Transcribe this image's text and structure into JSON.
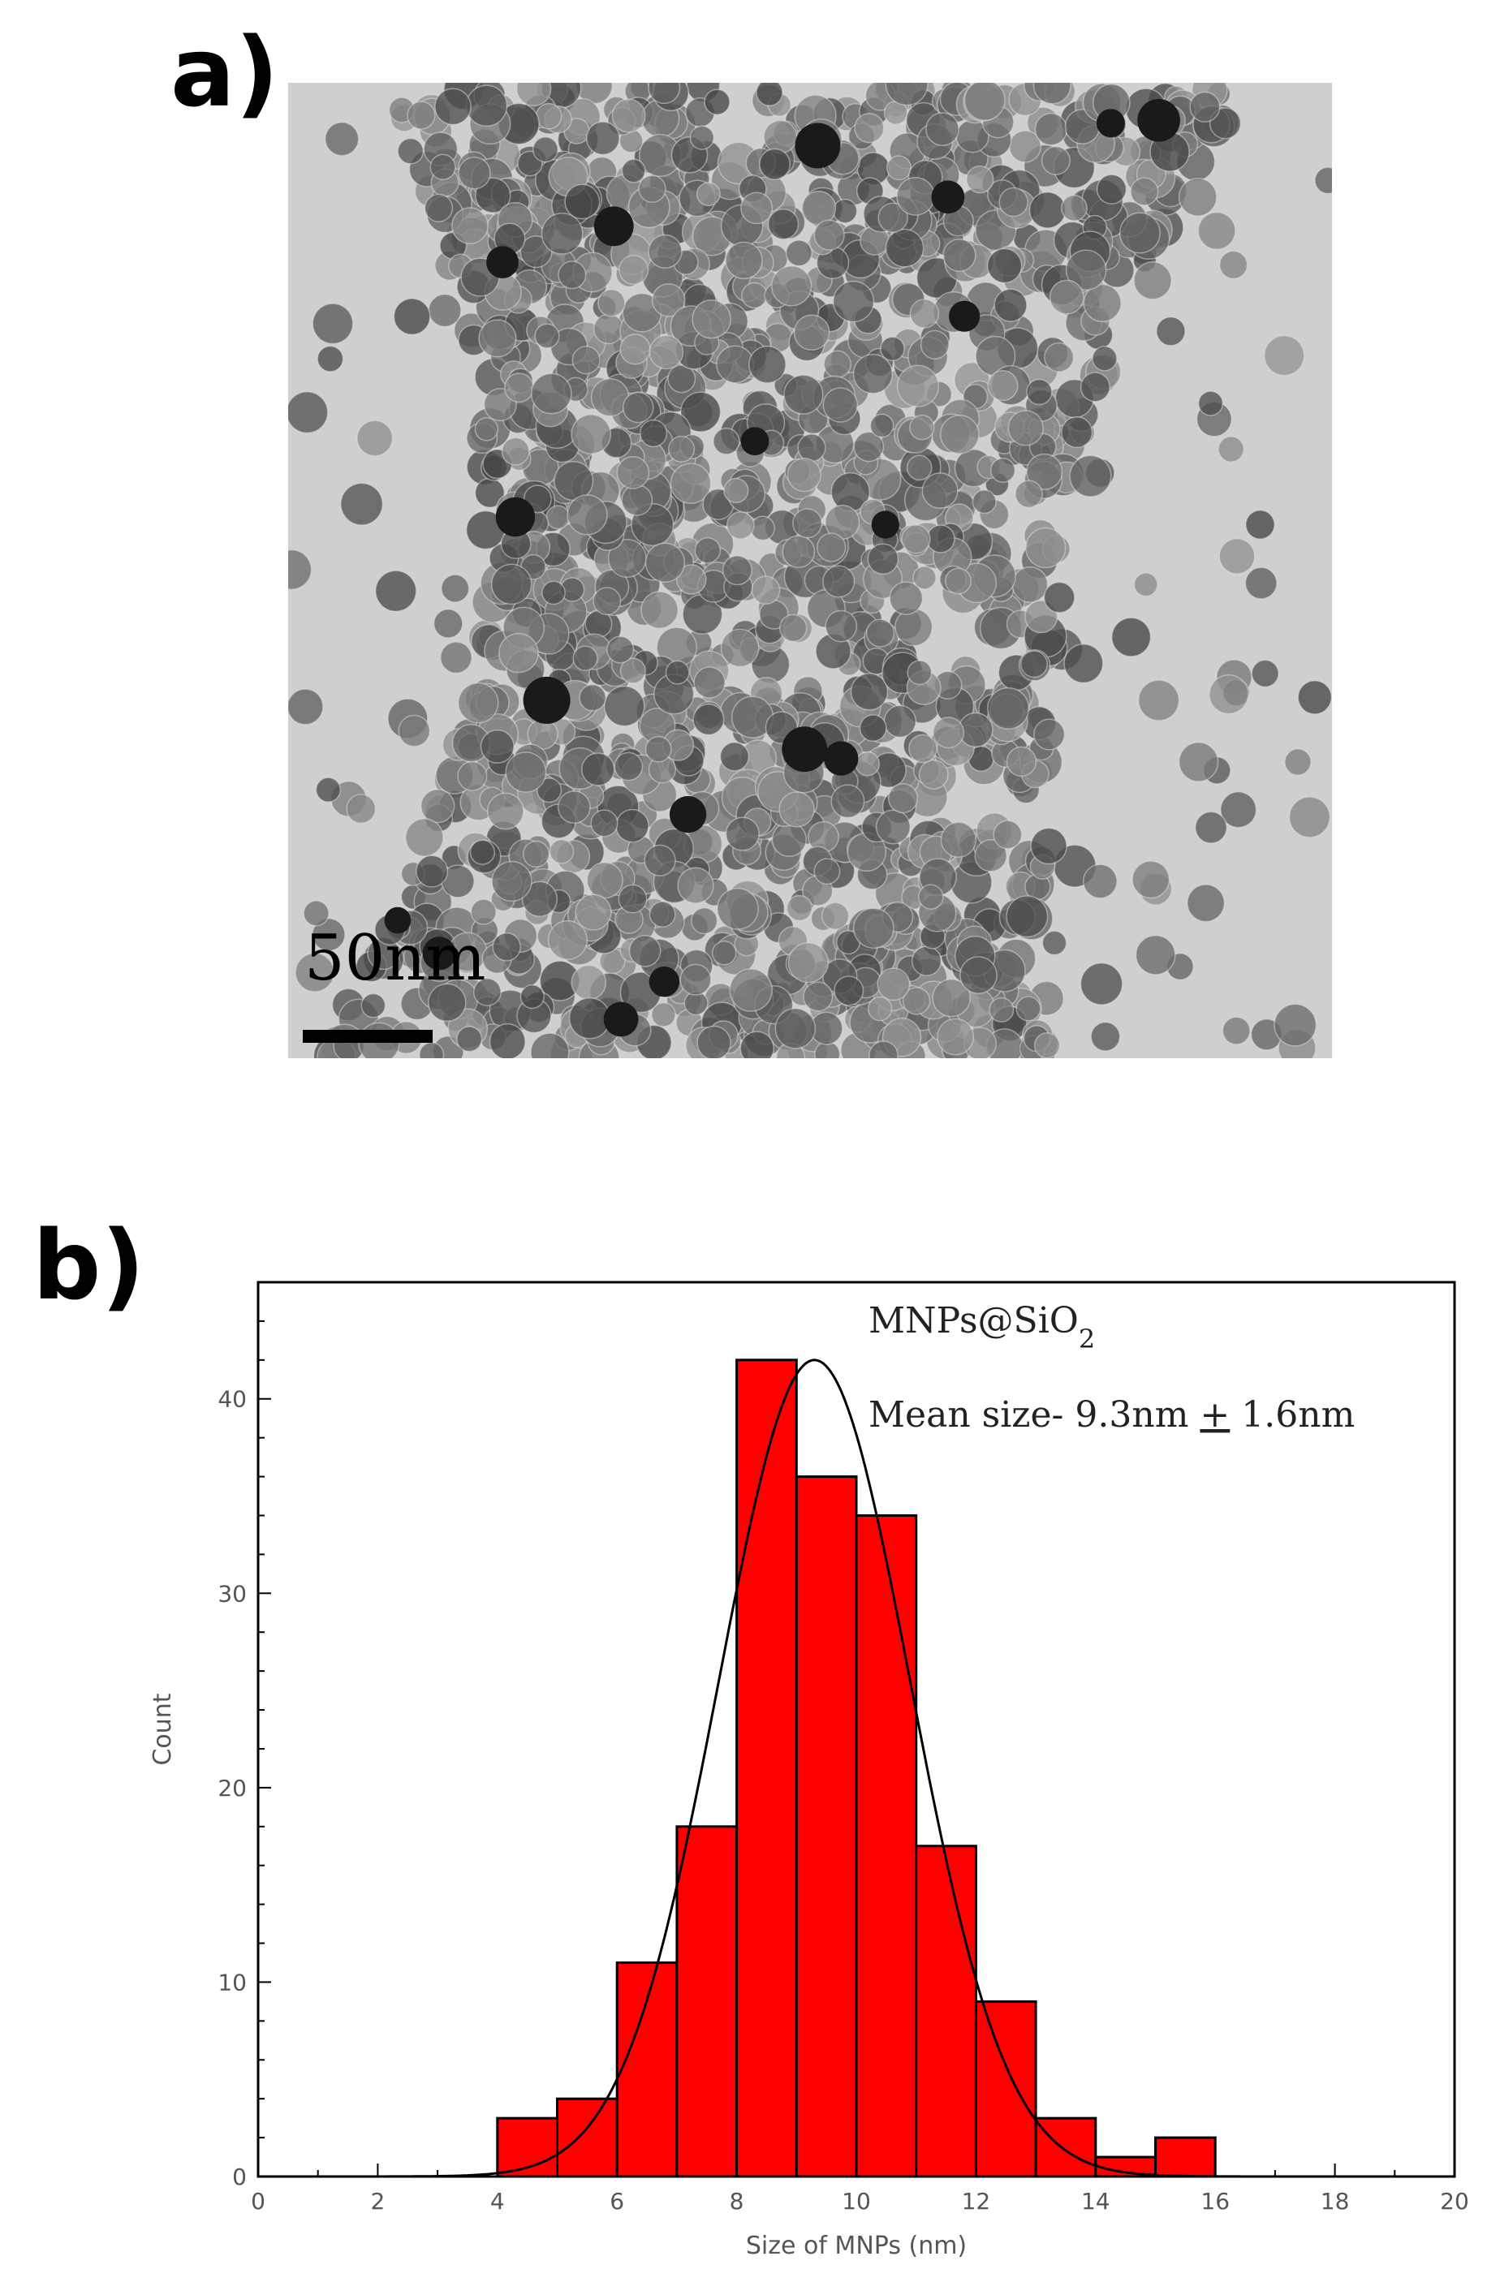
{
  "panel_a": {
    "label": "a)",
    "scale_bar": "50nm"
  },
  "panel_b": {
    "label": "b)"
  },
  "chart_data": {
    "type": "bar",
    "bin_width": 1,
    "bin_starts": [
      4,
      5,
      6,
      7,
      8,
      9,
      10,
      11,
      12,
      13,
      14,
      15
    ],
    "values": [
      3,
      4,
      11,
      18,
      42,
      36,
      34,
      17,
      9,
      3,
      1,
      2
    ],
    "bar_color": "#ff0000",
    "fit": {
      "type": "gaussian",
      "mean": 9.3,
      "sd": 1.6,
      "peak": 42
    },
    "xlabel": "Size of MNPs (nm)",
    "ylabel": "Count",
    "xlim": [
      0,
      20
    ],
    "ylim": [
      0,
      46
    ],
    "xticks": [
      0,
      2,
      4,
      6,
      8,
      10,
      12,
      14,
      16,
      18,
      20
    ],
    "yticks": [
      0,
      10,
      20,
      30,
      40
    ],
    "annotation_title": "MNPs@SiO",
    "annotation_subscript": "2",
    "annotation_mean_prefix": "Mean size- 9.3nm ",
    "annotation_pm": "+",
    "annotation_mean_suffix": " 1.6nm"
  }
}
